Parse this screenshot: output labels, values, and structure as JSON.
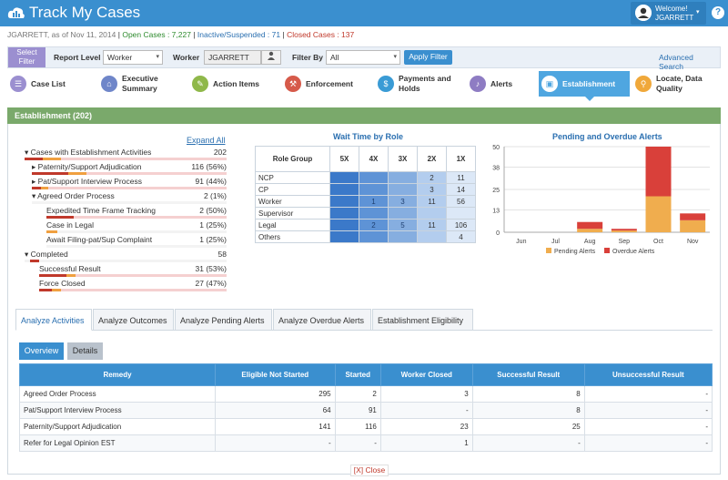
{
  "header": {
    "title": "Track My Cases",
    "welcome": "Welcome!",
    "username": "JGARRETT",
    "help": "?"
  },
  "status": {
    "prefix": "JGARRETT, as of Nov 11, 2014",
    "open": "Open Cases : 7,227",
    "inactive": "Inactive/Suspended : 71",
    "closed": "Closed Cases : 137"
  },
  "filters": {
    "select_filter": "Select Filter",
    "report_level_label": "Report Level",
    "report_level_value": "Worker",
    "worker_label": "Worker",
    "worker_value": "JGARRETT",
    "filter_by_label": "Filter By",
    "filter_by_value": "All",
    "apply_label": "Apply Filter",
    "advanced_search": "Advanced Search"
  },
  "tabs": [
    {
      "label": "Case List",
      "icon": "list-icon",
      "color": "#9b8fd0"
    },
    {
      "label": "Executive Summary",
      "icon": "home-icon",
      "color": "#6f86c9"
    },
    {
      "label": "Action Items",
      "icon": "edit-icon",
      "color": "#8fb84a"
    },
    {
      "label": "Enforcement",
      "icon": "gavel-icon",
      "color": "#d65a4a"
    },
    {
      "label": "Payments and Holds",
      "icon": "money-icon",
      "color": "#3a9bd5"
    },
    {
      "label": "Alerts",
      "icon": "bell-icon",
      "color": "#8e7cc3"
    },
    {
      "label": "Establishment",
      "icon": "briefcase-icon",
      "color": "#ffffff"
    },
    {
      "label": "Locate, Data Quality",
      "icon": "map-pin-icon",
      "color": "#f0a83a"
    }
  ],
  "section": {
    "title": "Establishment (202)"
  },
  "tree": {
    "expand_all": "Expand All",
    "rows": [
      {
        "name": "▾ Cases with Establishment Activities",
        "value": "202"
      },
      {
        "name": "▸ Paternity/Support Adjudication",
        "value": "116 (56%)"
      },
      {
        "name": "▸ Pat/Support Interview Process",
        "value": "91 (44%)"
      },
      {
        "name": "▾ Agreed Order Process",
        "value": "2 (1%)"
      },
      {
        "name": "Expedited Time Frame Tracking",
        "value": "2 (50%)"
      },
      {
        "name": "Case in Legal",
        "value": "1 (25%)"
      },
      {
        "name": "Await Filing-pat/Sup Complaint",
        "value": "1 (25%)"
      },
      {
        "name": "▾ Completed",
        "value": "58"
      },
      {
        "name": "Successful Result",
        "value": "31 (53%)"
      },
      {
        "name": "Force Closed",
        "value": "27 (47%)"
      }
    ]
  },
  "wait_time": {
    "title": "Wait Time by Role",
    "headers": [
      "Role Group",
      "5X",
      "4X",
      "3X",
      "2X",
      "1X"
    ],
    "rows": [
      {
        "role": "NCP",
        "c5": "",
        "c4": "",
        "c3": "",
        "c2": "2",
        "c1": "11"
      },
      {
        "role": "CP",
        "c5": "",
        "c4": "",
        "c3": "",
        "c2": "3",
        "c1": "14"
      },
      {
        "role": "Worker",
        "c5": "",
        "c4": "1",
        "c3": "3",
        "c2": "11",
        "c1": "56"
      },
      {
        "role": "Supervisor",
        "c5": "",
        "c4": "",
        "c3": "",
        "c2": "",
        "c1": ""
      },
      {
        "role": "Legal",
        "c5": "",
        "c4": "2",
        "c3": "5",
        "c2": "11",
        "c1": "106"
      },
      {
        "role": "Others",
        "c5": "",
        "c4": "",
        "c3": "",
        "c2": "",
        "c1": "4"
      }
    ]
  },
  "chart_data": {
    "type": "bar",
    "title": "Pending and Overdue Alerts",
    "categories": [
      "Jun",
      "Jul",
      "Aug",
      "Sep",
      "Oct",
      "Nov"
    ],
    "series": [
      {
        "name": "Pending Alerts",
        "values": [
          0,
          0,
          2,
          1,
          21,
          7
        ],
        "color": "#f0ad4e"
      },
      {
        "name": "Overdue Alerts",
        "values": [
          0,
          0,
          4,
          1,
          29,
          4
        ],
        "color": "#d9403a"
      }
    ],
    "stacked": true,
    "ylim": [
      0,
      50
    ],
    "yticks": [
      "0",
      "13",
      "25",
      "38",
      "50"
    ],
    "legend": "bottom"
  },
  "analyze": {
    "tabs": [
      "Analyze Activities",
      "Analyze Outcomes",
      "Analyze Pending Alerts",
      "Analyze Overdue Alerts",
      "Establishment Eligibility"
    ],
    "subtabs": [
      "Overview",
      "Details"
    ]
  },
  "remedy_table": {
    "headers": [
      "Remedy",
      "Eligible Not Started",
      "Started",
      "Worker Closed",
      "Successful Result",
      "Unsuccessful Result"
    ],
    "rows": [
      [
        "Agreed Order Process",
        "295",
        "2",
        "3",
        "8",
        "-"
      ],
      [
        "Pat/Support Interview Process",
        "64",
        "91",
        "-",
        "8",
        "-"
      ],
      [
        "Paternity/Support Adjudication",
        "141",
        "116",
        "23",
        "25",
        "-"
      ],
      [
        "Refer for Legal Opinion EST",
        "-",
        "-",
        "1",
        "-",
        "-"
      ]
    ]
  },
  "close_link": "[X] Close"
}
